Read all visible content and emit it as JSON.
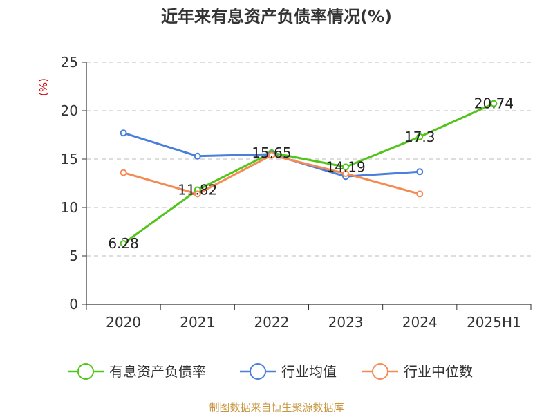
{
  "title": "近年来有息资产负债率情况(%)",
  "source": "制图数据来自恒生聚源数据库",
  "chart_data": {
    "type": "line",
    "title": "近年来有息资产负债率情况(%)",
    "ylabel": "(%)",
    "xlabel": "",
    "categories": [
      "2020",
      "2021",
      "2022",
      "2023",
      "2024",
      "2025H1"
    ],
    "ylim": [
      0,
      25
    ],
    "yticks": [
      0,
      5,
      10,
      15,
      20,
      25
    ],
    "grid": true,
    "legend_position": "bottom",
    "series": [
      {
        "name": "有息资产负债率",
        "color": "#52c41a",
        "values": [
          6.28,
          11.82,
          15.65,
          14.19,
          17.3,
          20.74
        ],
        "labels": [
          "6.28",
          "11.82",
          "15.65",
          "14.19",
          "17.3",
          "20.74"
        ]
      },
      {
        "name": "行业均值",
        "color": "#4a7fdc",
        "values": [
          17.7,
          15.3,
          15.5,
          13.2,
          13.7,
          null
        ]
      },
      {
        "name": "行业中位数",
        "color": "#f58b54",
        "values": [
          13.6,
          11.4,
          15.4,
          13.5,
          11.4,
          null
        ]
      }
    ]
  }
}
